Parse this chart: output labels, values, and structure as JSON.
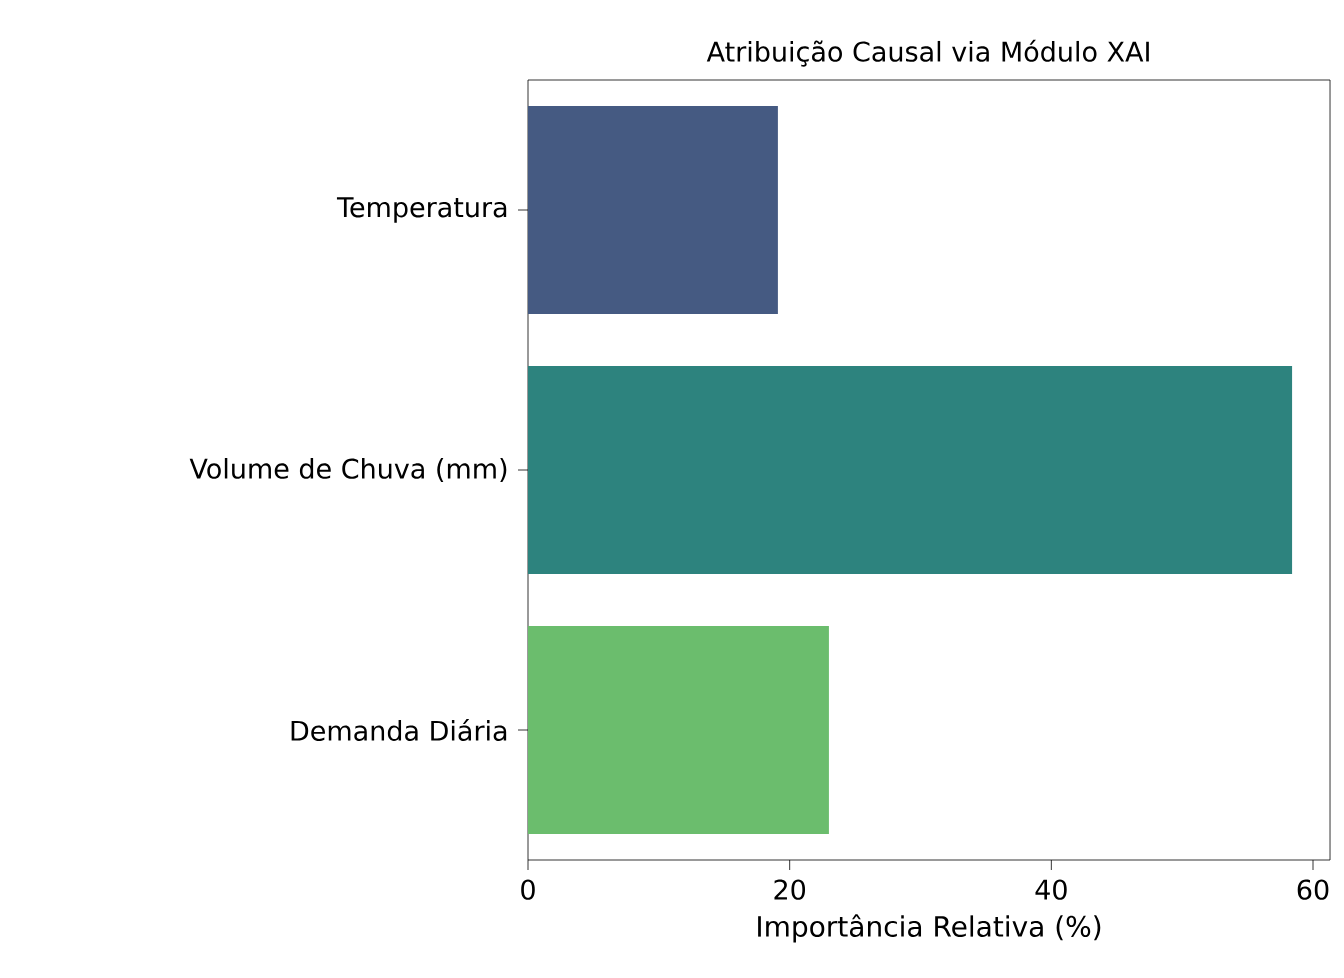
{
  "chart_data": {
    "type": "bar",
    "orientation": "horizontal",
    "title": "Atribuição Causal via Módulo XAI",
    "xlabel": "Importância Relativa (%)",
    "categories": [
      "Temperatura",
      "Volume de Chuva (mm)",
      "Demanda Diária"
    ],
    "values": [
      19.1,
      58.4,
      23
    ],
    "colors": [
      "#455a82",
      "#2d837e",
      "#6bbd6d"
    ],
    "xlim": [
      0,
      61.3
    ],
    "xticks": [
      0,
      20,
      40,
      60
    ]
  }
}
